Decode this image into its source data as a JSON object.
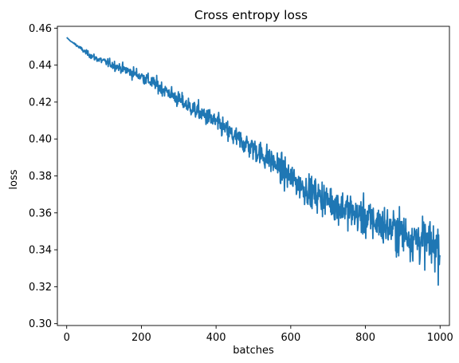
{
  "chart_data": {
    "type": "line",
    "title": "Cross entropy loss",
    "xlabel": "batches",
    "ylabel": "loss",
    "xlim": [
      -25,
      1025
    ],
    "ylim": [
      0.299,
      0.461
    ],
    "x_ticks": [
      0,
      200,
      400,
      600,
      800,
      1000
    ],
    "y_ticks": [
      0.3,
      0.32,
      0.34,
      0.36,
      0.38,
      0.4,
      0.42,
      0.44,
      0.46
    ],
    "y_tick_labels": [
      "0.30",
      "0.32",
      "0.34",
      "0.36",
      "0.38",
      "0.40",
      "0.42",
      "0.44",
      "0.46"
    ],
    "grid": false,
    "legend": "none",
    "series": [
      {
        "color": "#1f77b4",
        "x": [
          0,
          10,
          25,
          50,
          75,
          100,
          125,
          150,
          175,
          200,
          225,
          250,
          275,
          300,
          325,
          350,
          375,
          400,
          425,
          450,
          475,
          500,
          525,
          550,
          575,
          600,
          625,
          650,
          675,
          700,
          725,
          750,
          775,
          800,
          825,
          850,
          875,
          900,
          925,
          950,
          975,
          1000
        ],
        "y": [
          0.455,
          0.453,
          0.451,
          0.447,
          0.444,
          0.442,
          0.44,
          0.438,
          0.436,
          0.434,
          0.431,
          0.428,
          0.425,
          0.421,
          0.418,
          0.415,
          0.412,
          0.409,
          0.405,
          0.401,
          0.398,
          0.395,
          0.391,
          0.388,
          0.383,
          0.379,
          0.375,
          0.372,
          0.369,
          0.367,
          0.364,
          0.362,
          0.359,
          0.357,
          0.355,
          0.353,
          0.351,
          0.349,
          0.347,
          0.345,
          0.343,
          0.341
        ],
        "noise_band": [
          0.0,
          0.0,
          0.001,
          0.002,
          0.003,
          0.003,
          0.004,
          0.004,
          0.005,
          0.005,
          0.006,
          0.006,
          0.006,
          0.007,
          0.007,
          0.008,
          0.008,
          0.008,
          0.009,
          0.009,
          0.01,
          0.01,
          0.011,
          0.011,
          0.012,
          0.012,
          0.013,
          0.013,
          0.014,
          0.014,
          0.015,
          0.015,
          0.016,
          0.016,
          0.017,
          0.017,
          0.018,
          0.018,
          0.019,
          0.019,
          0.02,
          0.02
        ],
        "n_batches": 1000
      }
    ]
  }
}
